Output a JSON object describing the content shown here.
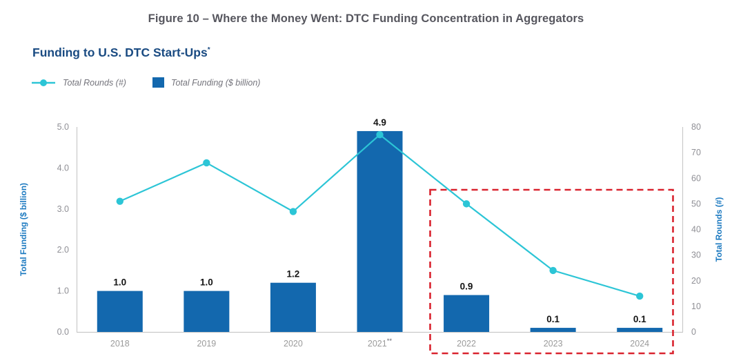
{
  "header": {
    "title": "Figure 10 – Where the Money Went: DTC Funding Concentration in Aggregators",
    "subtitle": "Funding to U.S. DTC Start-Ups",
    "subtitle_sup": "*"
  },
  "legend": {
    "items": [
      {
        "label": "Total Rounds (#)",
        "marker": "teal-line-dot"
      },
      {
        "label": "Total Funding ($ billion)",
        "marker": "blue-square"
      }
    ]
  },
  "chart_data": {
    "type": "combo-bar-line",
    "categories": [
      "2018",
      "2019",
      "2020",
      "2021",
      "2022",
      "2023",
      "2024"
    ],
    "category_sups": [
      "",
      "",
      "",
      "**",
      "",
      "",
      ""
    ],
    "series": [
      {
        "name": "Total Funding ($ billion)",
        "type": "bar",
        "axis": "left",
        "values": [
          1.0,
          1.0,
          1.2,
          4.9,
          0.9,
          0.1,
          0.1
        ],
        "labels": [
          "1.0",
          "1.0",
          "1.2",
          "4.9",
          "0.9",
          "0.1",
          "0.1"
        ],
        "color": "#1368ae"
      },
      {
        "name": "Total Rounds (#)",
        "type": "line",
        "axis": "right",
        "values": [
          51,
          66,
          47,
          77,
          50,
          24,
          14
        ],
        "color": "#2cc5d6"
      }
    ],
    "left_axis": {
      "title": "Total Funding ($ billion)",
      "min": 0,
      "max": 5,
      "tick_step": 1,
      "tick_labels": [
        "0.0",
        "1.0",
        "2.0",
        "3.0",
        "4.0",
        "5.0"
      ]
    },
    "right_axis": {
      "title": "Total Rounds (#)",
      "min": 0,
      "max": 80,
      "tick_step": 10
    },
    "annotation": {
      "type": "dashed-highlight-box",
      "years": [
        "2022",
        "2023",
        "2024"
      ],
      "color": "#d9232e"
    },
    "grid": false,
    "legend_position": "top-left"
  },
  "colors": {
    "bar_blue": "#1368ae",
    "line_teal": "#2cc5d6",
    "axis_title_blue": "#1b79c0",
    "subtitle_navy": "#1a4b82",
    "title_gray": "#56565e",
    "tick_gray": "#8f8f95",
    "x_label_gray": "#9a9a9a",
    "highlight_red": "#d9232e",
    "axis_line_gray": "#c9c9c9",
    "bar_label_black": "#141414"
  }
}
